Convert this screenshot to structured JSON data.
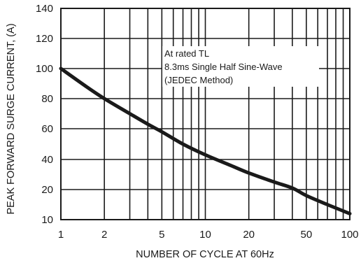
{
  "chart_data": {
    "type": "line",
    "xlabel": "NUMBER OF CYCLE AT 60Hz",
    "ylabel": "PEAK FORWARD SURGE CURRENT, (A)",
    "x_scale": "log",
    "xlim": [
      1,
      100
    ],
    "ylim": [
      10,
      140
    ],
    "x_ticks": [
      1,
      2,
      5,
      10,
      20,
      50,
      100
    ],
    "y_ticks": [
      10,
      20,
      40,
      60,
      80,
      100,
      120,
      140
    ],
    "x_minor_gridlines": [
      3,
      4,
      6,
      7,
      8,
      9,
      30,
      40,
      60,
      70,
      80,
      90
    ],
    "grid": true,
    "annotation": [
      "At rated TL",
      "8.3ms Single Half Sine-Wave",
      "(JEDEC Method)"
    ],
    "series": [
      {
        "x": [
          1,
          1.5,
          2,
          3,
          4,
          5,
          7,
          10,
          15,
          20,
          30,
          40,
          50,
          70,
          100
        ],
        "y": [
          100,
          88,
          80,
          70,
          63,
          58,
          50,
          43,
          36,
          31,
          25,
          21,
          18,
          15,
          12
        ],
        "color": "#1a1a1a"
      }
    ]
  }
}
